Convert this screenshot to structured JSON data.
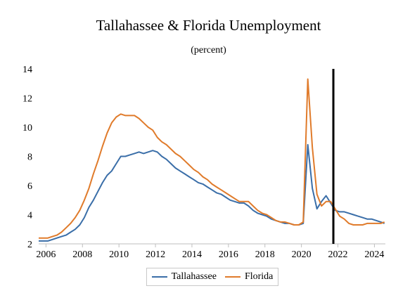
{
  "title": "Tallahassee & Florida Unemployment",
  "subtitle": "(percent)",
  "chart_data": {
    "type": "line",
    "title": "Tallahassee & Florida Unemployment",
    "subtitle": "(percent)",
    "xlabel": "",
    "ylabel": "",
    "xlim": [
      2005.6,
      2024.6
    ],
    "ylim": [
      2,
      14
    ],
    "xticks": [
      2006,
      2008,
      2010,
      2012,
      2014,
      2016,
      2018,
      2020,
      2022,
      2024
    ],
    "yticks": [
      2,
      4,
      6,
      8,
      10,
      12,
      14
    ],
    "vertical_marker_x": 2021.75,
    "legend_position": "bottom-center",
    "grid": false,
    "series": [
      {
        "name": "Tallahassee",
        "color": "#3a6ea8",
        "x": [
          2005.6,
          2005.85,
          2006.1,
          2006.35,
          2006.6,
          2006.85,
          2007.1,
          2007.35,
          2007.6,
          2007.85,
          2008.1,
          2008.35,
          2008.6,
          2008.85,
          2009.1,
          2009.35,
          2009.6,
          2009.85,
          2010.1,
          2010.35,
          2010.6,
          2010.85,
          2011.1,
          2011.35,
          2011.6,
          2011.85,
          2012.1,
          2012.35,
          2012.6,
          2012.85,
          2013.1,
          2013.35,
          2013.6,
          2013.85,
          2014.1,
          2014.35,
          2014.6,
          2014.85,
          2015.1,
          2015.35,
          2015.6,
          2015.85,
          2016.1,
          2016.35,
          2016.6,
          2016.85,
          2017.1,
          2017.35,
          2017.6,
          2017.85,
          2018.1,
          2018.35,
          2018.6,
          2018.85,
          2019.1,
          2019.35,
          2019.6,
          2019.85,
          2020.1,
          2020.35,
          2020.6,
          2020.85,
          2021.1,
          2021.35,
          2021.6,
          2021.85,
          2022.1,
          2022.35,
          2022.6,
          2022.85,
          2023.1,
          2023.35,
          2023.6,
          2023.85,
          2024.1,
          2024.35,
          2024.55
        ],
        "values": [
          2.2,
          2.2,
          2.2,
          2.3,
          2.4,
          2.5,
          2.6,
          2.8,
          3.0,
          3.3,
          3.8,
          4.5,
          5.0,
          5.6,
          6.2,
          6.7,
          7.0,
          7.5,
          8.0,
          8.0,
          8.1,
          8.2,
          8.3,
          8.2,
          8.3,
          8.4,
          8.3,
          8.0,
          7.8,
          7.5,
          7.2,
          7.0,
          6.8,
          6.6,
          6.4,
          6.2,
          6.1,
          5.9,
          5.7,
          5.5,
          5.4,
          5.2,
          5.0,
          4.9,
          4.8,
          4.8,
          4.6,
          4.3,
          4.1,
          4.0,
          3.9,
          3.7,
          3.6,
          3.5,
          3.4,
          3.4,
          3.3,
          3.3,
          3.4,
          8.8,
          5.8,
          4.4,
          4.9,
          5.3,
          4.8,
          4.3,
          4.2,
          4.2,
          4.1,
          4.0,
          3.9,
          3.8,
          3.7,
          3.7,
          3.6,
          3.5,
          3.4
        ]
      },
      {
        "name": "Florida",
        "color": "#e07b2b",
        "x": [
          2005.6,
          2005.85,
          2006.1,
          2006.35,
          2006.6,
          2006.85,
          2007.1,
          2007.35,
          2007.6,
          2007.85,
          2008.1,
          2008.35,
          2008.6,
          2008.85,
          2009.1,
          2009.35,
          2009.6,
          2009.85,
          2010.1,
          2010.35,
          2010.6,
          2010.85,
          2011.1,
          2011.35,
          2011.6,
          2011.85,
          2012.1,
          2012.35,
          2012.6,
          2012.85,
          2013.1,
          2013.35,
          2013.6,
          2013.85,
          2014.1,
          2014.35,
          2014.6,
          2014.85,
          2015.1,
          2015.35,
          2015.6,
          2015.85,
          2016.1,
          2016.35,
          2016.6,
          2016.85,
          2017.1,
          2017.35,
          2017.6,
          2017.85,
          2018.1,
          2018.35,
          2018.6,
          2018.85,
          2019.1,
          2019.35,
          2019.6,
          2019.85,
          2020.1,
          2020.35,
          2020.6,
          2020.85,
          2021.1,
          2021.35,
          2021.6,
          2021.85,
          2022.1,
          2022.35,
          2022.6,
          2022.85,
          2023.1,
          2023.35,
          2023.6,
          2023.85,
          2024.1,
          2024.35,
          2024.55
        ],
        "values": [
          2.4,
          2.4,
          2.4,
          2.5,
          2.6,
          2.8,
          3.1,
          3.4,
          3.8,
          4.3,
          5.0,
          5.8,
          6.8,
          7.7,
          8.7,
          9.6,
          10.3,
          10.7,
          10.9,
          10.8,
          10.8,
          10.8,
          10.6,
          10.3,
          10.0,
          9.8,
          9.3,
          9.0,
          8.8,
          8.5,
          8.2,
          8.0,
          7.7,
          7.4,
          7.1,
          6.9,
          6.6,
          6.4,
          6.1,
          5.9,
          5.7,
          5.5,
          5.3,
          5.1,
          4.9,
          4.9,
          4.9,
          4.6,
          4.3,
          4.1,
          4.0,
          3.8,
          3.6,
          3.5,
          3.5,
          3.4,
          3.3,
          3.3,
          3.5,
          13.3,
          8.6,
          5.4,
          4.6,
          4.9,
          4.9,
          4.4,
          3.9,
          3.7,
          3.4,
          3.3,
          3.3,
          3.3,
          3.4,
          3.4,
          3.4,
          3.4,
          3.5
        ]
      }
    ]
  },
  "legend": {
    "items": [
      {
        "label": "Tallahassee",
        "color": "#3a6ea8"
      },
      {
        "label": "Florida",
        "color": "#e07b2b"
      }
    ]
  }
}
